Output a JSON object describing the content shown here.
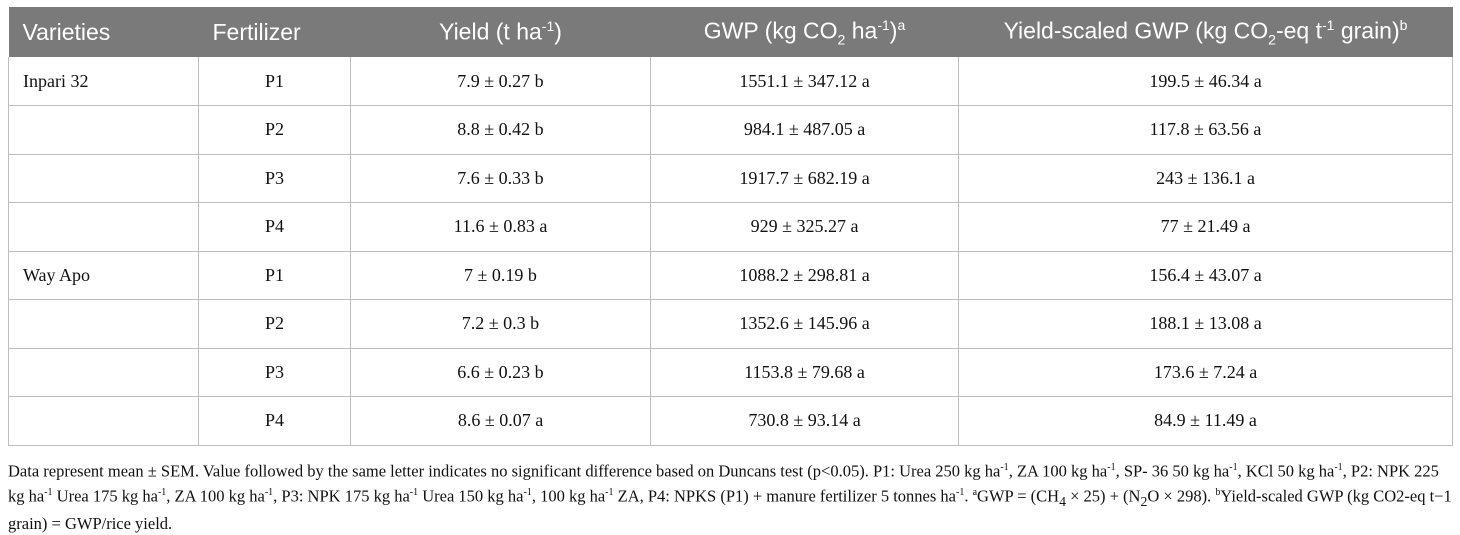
{
  "table": {
    "headers": {
      "varieties": "Varieties",
      "fertilizer": "Fertilizer",
      "yield_main": "Yield (t ha",
      "yield_sup": "-1",
      "yield_close": ")",
      "gwp_main": "GWP (kg CO",
      "gwp_sub": "2",
      "gwp_mid": " ha",
      "gwp_sup": "-1",
      "gwp_close": ")",
      "gwp_note": "a",
      "ys_main": "Yield-scaled GWP (kg CO",
      "ys_sub": "2",
      "ys_mid": "-eq t",
      "ys_sup": "-1",
      "ys_close": " grain)",
      "ys_note": "b"
    },
    "rows": [
      {
        "variety": "Inpari 32",
        "fertilizer": "P1",
        "yield": "7.9 ± 0.27 b",
        "gwp": "1551.1 ± 347.12 a",
        "ys_gwp": "199.5 ± 46.34 a"
      },
      {
        "variety": "",
        "fertilizer": "P2",
        "yield": "8.8 ± 0.42 b",
        "gwp": "984.1 ± 487.05 a",
        "ys_gwp": "117.8 ± 63.56 a"
      },
      {
        "variety": "",
        "fertilizer": "P3",
        "yield": "7.6 ± 0.33 b",
        "gwp": "1917.7 ± 682.19 a",
        "ys_gwp": "243 ± 136.1 a"
      },
      {
        "variety": "",
        "fertilizer": "P4",
        "yield": "11.6 ± 0.83 a",
        "gwp": "929 ± 325.27 a",
        "ys_gwp": "77 ± 21.49 a"
      },
      {
        "variety": "Way Apo",
        "fertilizer": "P1",
        "yield": "7 ± 0.19 b",
        "gwp": "1088.2 ± 298.81 a",
        "ys_gwp": "156.4 ± 43.07 a"
      },
      {
        "variety": "",
        "fertilizer": "P2",
        "yield": "7.2 ± 0.3 b",
        "gwp": "1352.6 ± 145.96 a",
        "ys_gwp": "188.1 ± 13.08 a"
      },
      {
        "variety": "",
        "fertilizer": "P3",
        "yield": "6.6 ± 0.23 b",
        "gwp": "1153.8 ± 79.68 a",
        "ys_gwp": "173.6 ± 7.24 a"
      },
      {
        "variety": "",
        "fertilizer": "P4",
        "yield": "8.6 ± 0.07 a",
        "gwp": "730.8 ± 93.14 a",
        "ys_gwp": "84.9 ± 11.49 a"
      }
    ]
  },
  "footnote": {
    "t1": "Data represent mean ± SEM. Value followed by the same letter indicates no significant difference based on Duncans test (p<0.05). P1: Urea 250 kg ha",
    "s1": "-1",
    "t2": ", ZA 100 kg ha",
    "s2": "-1",
    "t3": ", SP- 36 50 kg ha",
    "s3": "-1",
    "t4": ", KCl 50 kg ha",
    "s4": "-1",
    "t5": ", P2: NPK 225 kg ha",
    "s5": "-1",
    "t6": " Urea 175 kg ha",
    "s6": "-1",
    "t7": ", ZA 100 kg ha",
    "s7": "-1",
    "t8": ", P3: NPK 175 kg ha",
    "s8": "-1",
    "t9": " Urea 150 kg ha",
    "s9": "-1",
    "t10": ", 100 kg ha",
    "s10": "-1",
    "t11": " ZA, P4: NPKS (P1) + manure fertilizer 5 tonnes ha",
    "s11": "-1",
    "t12": ". ",
    "sa": "a",
    "t13": "GWP = (CH",
    "sub1": "4",
    "t14": " × 25) + (N",
    "sub2": "2",
    "t15": "O × 298). ",
    "sb": "b",
    "t16": "Yield-scaled GWP (kg CO2-eq t−1 grain) = GWP/rice yield."
  },
  "colors": {
    "header_bg": "#7a7a7a",
    "header_text": "#ffffff",
    "rule": "#bdbdbd"
  }
}
